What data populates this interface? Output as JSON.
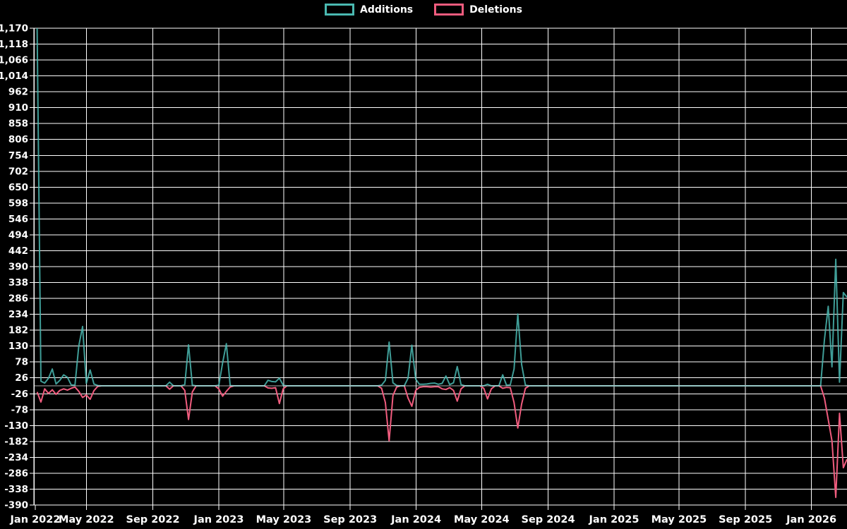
{
  "legend": {
    "additions_label": "Additions",
    "deletions_label": "Deletions"
  },
  "colors": {
    "additions": "#4ab9b1",
    "deletions": "#f05c7e",
    "background": "#000000",
    "grid": "#ffffff",
    "text": "#ffffff",
    "zero_line_blend": "#9ab4bd"
  },
  "y_axis": {
    "min": -390,
    "max": 1170,
    "step": 52,
    "tick_values": [
      1170,
      1118,
      1066,
      1014,
      962,
      910,
      858,
      806,
      754,
      702,
      650,
      598,
      546,
      494,
      442,
      390,
      338,
      286,
      234,
      182,
      130,
      78,
      26,
      -26,
      -78,
      -130,
      -182,
      -234,
      -286,
      -338,
      -390
    ],
    "tick_labels": [
      "1,170",
      "1,118",
      "1,066",
      "1,014",
      "962",
      "910",
      "858",
      "806",
      "754",
      "702",
      "650",
      "598",
      "546",
      "494",
      "442",
      "390",
      "338",
      "286",
      "234",
      "182",
      "130",
      "78",
      "26",
      "-26",
      "-78",
      "-130",
      "-182",
      "-234",
      "-286",
      "-338",
      "-390"
    ]
  },
  "x_axis": {
    "ticks": [
      {
        "label": "Jan 2022",
        "date": "2022-01-01"
      },
      {
        "label": "May 2022",
        "date": "2022-05-01"
      },
      {
        "label": "Sep 2022",
        "date": "2022-09-01"
      },
      {
        "label": "Jan 2023",
        "date": "2023-01-01"
      },
      {
        "label": "May 2023",
        "date": "2023-05-01"
      },
      {
        "label": "Sep 2023",
        "date": "2023-09-01"
      },
      {
        "label": "Jan 2024",
        "date": "2024-01-01"
      },
      {
        "label": "May 2024",
        "date": "2024-05-01"
      },
      {
        "label": "Sep 2024",
        "date": "2024-09-01"
      },
      {
        "label": "Jan 2025",
        "date": "2025-01-01"
      },
      {
        "label": "May 2025",
        "date": "2025-05-01"
      },
      {
        "label": "Sep 2025",
        "date": "2025-09-01"
      },
      {
        "label": "Jan 2026",
        "date": "2026-01-01"
      }
    ]
  },
  "chart_data": {
    "type": "line",
    "title": "",
    "xlabel": "",
    "ylabel": "",
    "ylim": [
      -390,
      1170
    ],
    "x_range": [
      "2022-01-30",
      "2026-03-08"
    ],
    "grid": true,
    "legend_position": "top-center",
    "series_names": [
      "Additions",
      "Deletions"
    ],
    "note": "weekly data; weeks not listed have additions 0 and deletions 0; deletions plotted as negative",
    "weekly_points": [
      {
        "week": "2022-01-30",
        "additions": 1170,
        "deletions": -20
      },
      {
        "week": "2022-02-06",
        "additions": 15,
        "deletions": -53
      },
      {
        "week": "2022-02-13",
        "additions": 9,
        "deletions": -10
      },
      {
        "week": "2022-02-20",
        "additions": 25,
        "deletions": -25
      },
      {
        "week": "2022-02-27",
        "additions": 55,
        "deletions": -13
      },
      {
        "week": "2022-03-06",
        "additions": 6,
        "deletions": -28
      },
      {
        "week": "2022-03-13",
        "additions": 18,
        "deletions": -15
      },
      {
        "week": "2022-03-20",
        "additions": 36,
        "deletions": -10
      },
      {
        "week": "2022-03-27",
        "additions": 28,
        "deletions": -14
      },
      {
        "week": "2022-04-03",
        "additions": 3,
        "deletions": -8
      },
      {
        "week": "2022-04-10",
        "additions": 2,
        "deletions": -4
      },
      {
        "week": "2022-04-17",
        "additions": 130,
        "deletions": -18
      },
      {
        "week": "2022-04-24",
        "additions": 194,
        "deletions": -38
      },
      {
        "week": "2022-05-01",
        "additions": 8,
        "deletions": -30
      },
      {
        "week": "2022-05-08",
        "additions": 52,
        "deletions": -44
      },
      {
        "week": "2022-05-15",
        "additions": 6,
        "deletions": -16
      },
      {
        "week": "2022-05-22",
        "additions": 1,
        "deletions": -2
      },
      {
        "week": "2022-10-02",
        "additions": 12,
        "deletions": -11
      },
      {
        "week": "2022-10-30",
        "additions": 4,
        "deletions": -15
      },
      {
        "week": "2022-11-06",
        "additions": 134,
        "deletions": -110
      },
      {
        "week": "2022-11-13",
        "additions": 2,
        "deletions": -20
      },
      {
        "week": "2023-01-01",
        "additions": 2,
        "deletions": -10
      },
      {
        "week": "2023-01-08",
        "additions": 75,
        "deletions": -34
      },
      {
        "week": "2023-01-15",
        "additions": 138,
        "deletions": -18
      },
      {
        "week": "2023-01-22",
        "additions": 1,
        "deletions": -4
      },
      {
        "week": "2023-04-02",
        "additions": 18,
        "deletions": -7
      },
      {
        "week": "2023-04-09",
        "additions": 14,
        "deletions": -8
      },
      {
        "week": "2023-04-16",
        "additions": 13,
        "deletions": -6
      },
      {
        "week": "2023-04-23",
        "additions": 25,
        "deletions": -58
      },
      {
        "week": "2023-04-30",
        "additions": 2,
        "deletions": -10
      },
      {
        "week": "2023-10-29",
        "additions": 2,
        "deletions": -8
      },
      {
        "week": "2023-11-05",
        "additions": 18,
        "deletions": -55
      },
      {
        "week": "2023-11-12",
        "additions": 143,
        "deletions": -180
      },
      {
        "week": "2023-11-19",
        "additions": 10,
        "deletions": -32
      },
      {
        "week": "2023-11-26",
        "additions": 1,
        "deletions": -4
      },
      {
        "week": "2023-12-17",
        "additions": 25,
        "deletions": -40
      },
      {
        "week": "2023-12-24",
        "additions": 133,
        "deletions": -67
      },
      {
        "week": "2023-12-31",
        "additions": 22,
        "deletions": -15
      },
      {
        "week": "2024-01-07",
        "additions": 5,
        "deletions": -5
      },
      {
        "week": "2024-01-14",
        "additions": 5,
        "deletions": -3
      },
      {
        "week": "2024-01-21",
        "additions": 6,
        "deletions": -3
      },
      {
        "week": "2024-01-28",
        "additions": 8,
        "deletions": -4
      },
      {
        "week": "2024-02-04",
        "additions": 9,
        "deletions": -3
      },
      {
        "week": "2024-02-11",
        "additions": 5,
        "deletions": -3
      },
      {
        "week": "2024-02-18",
        "additions": 8,
        "deletions": -10
      },
      {
        "week": "2024-02-25",
        "additions": 32,
        "deletions": -12
      },
      {
        "week": "2024-03-03",
        "additions": 4,
        "deletions": -6
      },
      {
        "week": "2024-03-10",
        "additions": 10,
        "deletions": -15
      },
      {
        "week": "2024-03-17",
        "additions": 63,
        "deletions": -50
      },
      {
        "week": "2024-03-24",
        "additions": 4,
        "deletions": -10
      },
      {
        "week": "2024-05-05",
        "additions": 0,
        "deletions": -8
      },
      {
        "week": "2024-05-12",
        "additions": 5,
        "deletions": -43
      },
      {
        "week": "2024-05-19",
        "additions": 0,
        "deletions": -10
      },
      {
        "week": "2024-06-09",
        "additions": 36,
        "deletions": -8
      },
      {
        "week": "2024-06-16",
        "additions": 2,
        "deletions": -5
      },
      {
        "week": "2024-06-23",
        "additions": 3,
        "deletions": -6
      },
      {
        "week": "2024-06-30",
        "additions": 55,
        "deletions": -55
      },
      {
        "week": "2024-07-07",
        "additions": 235,
        "deletions": -138
      },
      {
        "week": "2024-07-14",
        "additions": 70,
        "deletions": -60
      },
      {
        "week": "2024-07-21",
        "additions": 2,
        "deletions": -8
      },
      {
        "week": "2026-01-25",
        "additions": 150,
        "deletions": -40
      },
      {
        "week": "2026-02-01",
        "additions": 260,
        "deletions": -110
      },
      {
        "week": "2026-02-08",
        "additions": 62,
        "deletions": -180
      },
      {
        "week": "2026-02-15",
        "additions": 414,
        "deletions": -365
      },
      {
        "week": "2026-02-22",
        "additions": 12,
        "deletions": -90
      },
      {
        "week": "2026-03-01",
        "additions": 305,
        "deletions": -268
      },
      {
        "week": "2026-03-08",
        "additions": 290,
        "deletions": -240
      }
    ]
  }
}
